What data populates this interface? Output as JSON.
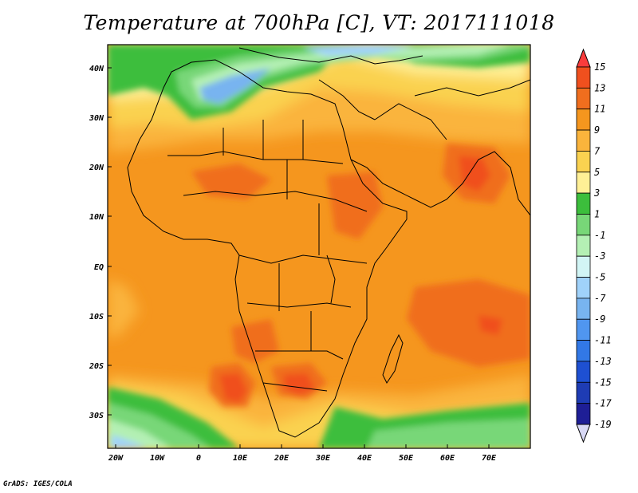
{
  "title": "Temperature at 700hPa [C], VT: 2017111018",
  "credit": "GrADS: IGES/COLA",
  "map": {
    "lat_labels": [
      "40N",
      "30N",
      "20N",
      "10N",
      "EQ",
      "10S",
      "20S",
      "30S"
    ],
    "lon_labels": [
      "20W",
      "10W",
      "0",
      "10E",
      "20E",
      "30E",
      "40E",
      "50E",
      "60E",
      "70E"
    ]
  },
  "colorbar": {
    "labels": [
      "15",
      "13",
      "11",
      "9",
      "7",
      "5",
      "3",
      "1",
      "-1",
      "-3",
      "-5",
      "-7",
      "-9",
      "-11",
      "-13",
      "-15",
      "-17",
      "-19"
    ],
    "colors": [
      "#fa3c3c",
      "#f0501e",
      "#f06e1e",
      "#f5961e",
      "#fab43c",
      "#fad250",
      "#fff096",
      "#3cbe3c",
      "#78d778",
      "#b4f0b4",
      "#d2f5f5",
      "#a0d2fa",
      "#78b4f0",
      "#5096f0",
      "#3278e6",
      "#1e50d2",
      "#1e3cb4",
      "#1e1e96",
      "#101060"
    ]
  }
}
